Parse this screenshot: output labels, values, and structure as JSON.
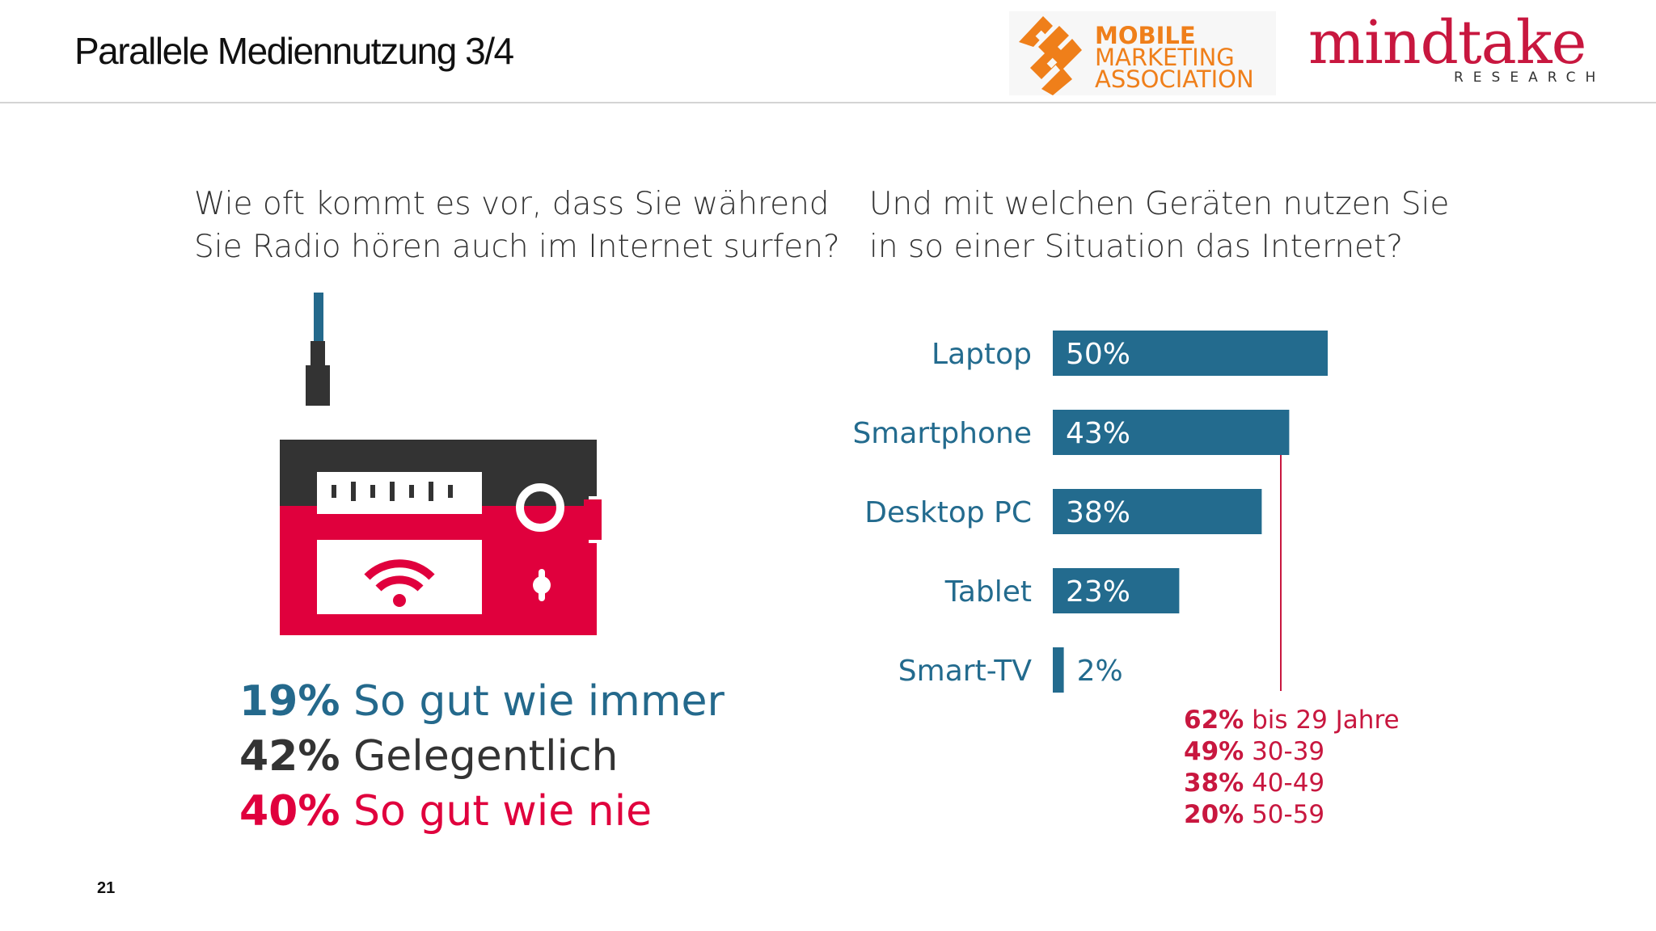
{
  "header": {
    "title": "Parallele Mediennutzung 3/4",
    "logo_mma": [
      "MOBILE",
      "MARKETING",
      "ASSOCIATION"
    ],
    "logo_mindtake": {
      "word": "mindtake",
      "sub": "RESEARCH"
    }
  },
  "left": {
    "question": "Wie oft kommt es vor, dass Sie während Sie Radio hören auch im Internet surfen?",
    "frequencies": [
      {
        "pct": "19%",
        "label": "So gut wie immer",
        "color": "#24698c"
      },
      {
        "pct": "42%",
        "label": "Gelegentlich",
        "color": "#333333"
      },
      {
        "pct": "40%",
        "label": "So gut wie nie",
        "color": "#e0003d"
      }
    ],
    "icon": "radio-wifi-icon"
  },
  "right": {
    "question": "Und mit welchen Geräten nutzen Sie in so einer Situation das Internet?"
  },
  "chart_data": {
    "type": "bar",
    "orientation": "horizontal",
    "title": "Und mit welchen Geräten nutzen Sie in so einer Situation das Internet?",
    "categories": [
      "Laptop",
      "Smartphone",
      "Desktop PC",
      "Tablet",
      "Smart-TV"
    ],
    "values": [
      50,
      43,
      38,
      23,
      2
    ],
    "value_labels": [
      "50%",
      "43%",
      "38%",
      "23%",
      "2%"
    ],
    "xlim": [
      0,
      100
    ],
    "xlabel": "",
    "ylabel": "",
    "grid": false,
    "bar_color": "#236b8e",
    "annotation": {
      "attached_to": "Smartphone",
      "color": "#c8173f",
      "items": [
        {
          "pct": "62%",
          "label": "bis 29 Jahre"
        },
        {
          "pct": "49%",
          "label": "30-39"
        },
        {
          "pct": "38%",
          "label": "40-49"
        },
        {
          "pct": "20%",
          "label": "50-59"
        }
      ]
    }
  },
  "footer": {
    "page_number": "21"
  }
}
